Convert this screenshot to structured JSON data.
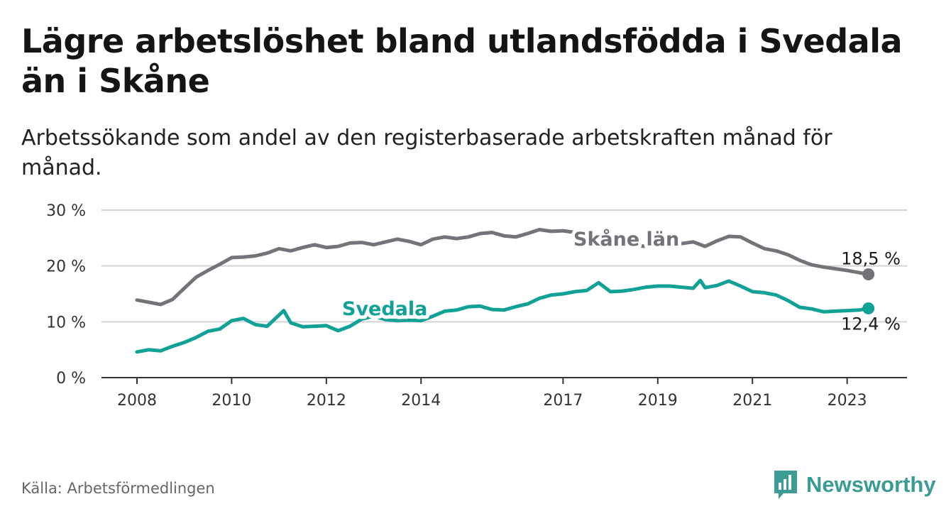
{
  "title": "Lägre arbetslöshet bland utlandsfödda i Svedala än i Skåne",
  "subtitle": "Arbetssökande som andel av den registerbaserade arbetskraften månad för månad.",
  "source": "Källa: Arbetsförmedlingen",
  "brand": {
    "name": "Newsworthy",
    "icon": "bar-chart-bubble-icon",
    "color": "#3a9c94"
  },
  "colors": {
    "skane": "#74737a",
    "svedala": "#12a196",
    "grid": "#d4d4d4",
    "axis": "#333333"
  },
  "chart_data": {
    "type": "line",
    "title": "Lägre arbetslöshet bland utlandsfödda i Svedala än i Skåne",
    "xlabel": "",
    "ylabel": "",
    "x_range": [
      2008,
      2023.5
    ],
    "ylim": [
      0,
      30
    ],
    "y_ticks": [
      0,
      10,
      20,
      30
    ],
    "y_tick_labels": [
      "0 %",
      "10 %",
      "20 %",
      "30 %"
    ],
    "x_ticks": [
      2008,
      2010,
      2012,
      2014,
      2017,
      2019,
      2021,
      2023
    ],
    "x_tick_labels": [
      "2008",
      "2010",
      "2012",
      "2014",
      "2017",
      "2019",
      "2021",
      "2023"
    ],
    "grid": true,
    "series": [
      {
        "name": "Skåne län",
        "label": "Skåne län",
        "end_label": "18,5 %",
        "x": [
          2008.0,
          2008.25,
          2008.5,
          2008.75,
          2009.0,
          2009.25,
          2009.5,
          2009.75,
          2010.0,
          2010.25,
          2010.5,
          2010.75,
          2011.0,
          2011.25,
          2011.5,
          2011.75,
          2012.0,
          2012.25,
          2012.5,
          2012.75,
          2013.0,
          2013.25,
          2013.5,
          2013.75,
          2014.0,
          2014.25,
          2014.5,
          2014.75,
          2015.0,
          2015.25,
          2015.5,
          2015.75,
          2016.0,
          2016.25,
          2016.5,
          2016.75,
          2017.0,
          2017.25,
          2017.5,
          2017.75,
          2018.0,
          2018.25,
          2018.5,
          2018.75,
          2019.0,
          2019.25,
          2019.5,
          2019.75,
          2020.0,
          2020.25,
          2020.5,
          2020.75,
          2021.0,
          2021.25,
          2021.5,
          2021.75,
          2022.0,
          2022.25,
          2022.5,
          2022.75,
          2023.0,
          2023.25,
          2023.45
        ],
        "values": [
          13.9,
          13.5,
          13.1,
          14.0,
          16.0,
          18.0,
          19.2,
          20.3,
          21.5,
          21.6,
          21.8,
          22.3,
          23.1,
          22.7,
          23.3,
          23.8,
          23.3,
          23.5,
          24.1,
          24.2,
          23.8,
          24.3,
          24.8,
          24.4,
          23.8,
          24.8,
          25.2,
          24.9,
          25.2,
          25.8,
          26.0,
          25.4,
          25.2,
          25.8,
          26.5,
          26.2,
          26.3,
          26.0,
          25.2,
          24.8,
          24.2,
          24.0,
          23.7,
          23.5,
          23.4,
          23.6,
          24.0,
          24.3,
          23.5,
          24.5,
          25.3,
          25.2,
          24.1,
          23.1,
          22.7,
          22.0,
          21.0,
          20.2,
          19.8,
          19.5,
          19.2,
          18.8,
          18.5
        ]
      },
      {
        "name": "Svedala",
        "label": "Svedala",
        "end_label": "12,4 %",
        "x": [
          2008.0,
          2008.25,
          2008.5,
          2008.75,
          2009.0,
          2009.25,
          2009.5,
          2009.75,
          2010.0,
          2010.25,
          2010.5,
          2010.75,
          2011.0,
          2011.1,
          2011.25,
          2011.5,
          2011.75,
          2012.0,
          2012.25,
          2012.5,
          2012.75,
          2013.0,
          2013.25,
          2013.5,
          2013.75,
          2014.0,
          2014.25,
          2014.5,
          2014.75,
          2015.0,
          2015.25,
          2015.5,
          2015.75,
          2016.0,
          2016.25,
          2016.5,
          2016.75,
          2017.0,
          2017.25,
          2017.5,
          2017.75,
          2018.0,
          2018.25,
          2018.5,
          2018.75,
          2019.0,
          2019.25,
          2019.5,
          2019.75,
          2019.9,
          2020.0,
          2020.25,
          2020.5,
          2020.75,
          2021.0,
          2021.25,
          2021.5,
          2021.75,
          2022.0,
          2022.25,
          2022.5,
          2022.75,
          2023.0,
          2023.25,
          2023.45
        ],
        "values": [
          4.6,
          5.0,
          4.8,
          5.6,
          6.3,
          7.2,
          8.3,
          8.7,
          10.2,
          10.6,
          9.5,
          9.2,
          11.2,
          12.0,
          9.8,
          9.1,
          9.2,
          9.3,
          8.4,
          9.2,
          10.5,
          11.0,
          10.4,
          10.2,
          10.3,
          10.2,
          11.0,
          11.9,
          12.1,
          12.7,
          12.8,
          12.2,
          12.1,
          12.7,
          13.2,
          14.2,
          14.8,
          15.0,
          15.4,
          15.6,
          17.0,
          15.4,
          15.5,
          15.8,
          16.2,
          16.4,
          16.4,
          16.2,
          16.0,
          17.4,
          16.1,
          16.5,
          17.3,
          16.4,
          15.4,
          15.2,
          14.8,
          13.8,
          12.6,
          12.3,
          11.8,
          11.9,
          12.0,
          12.1,
          12.4
        ]
      }
    ]
  }
}
